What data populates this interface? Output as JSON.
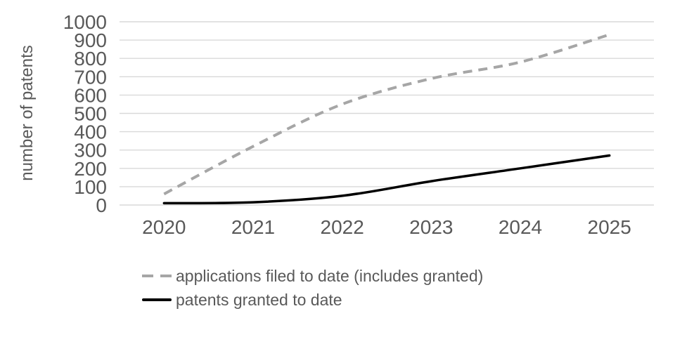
{
  "chart_data": {
    "type": "line",
    "categories": [
      "2020",
      "2021",
      "2022",
      "2023",
      "2024",
      "2025"
    ],
    "series": [
      {
        "name": "applications filed to date (includes granted)",
        "values": [
          60,
          320,
          550,
          690,
          780,
          930
        ],
        "color": "#A6A6A6",
        "style": "dashed"
      },
      {
        "name": "patents granted to date",
        "values": [
          10,
          15,
          50,
          130,
          200,
          270
        ],
        "color": "#000000",
        "style": "solid"
      }
    ],
    "xlabel": "",
    "ylabel": "number of patents",
    "ylim": [
      0,
      1000
    ],
    "y_ticks": [
      "0",
      "100",
      "200",
      "300",
      "400",
      "500",
      "600",
      "700",
      "800",
      "900",
      "1000"
    ],
    "grid": true,
    "legend_position": "bottom-left",
    "smoothed_lines": true
  },
  "colors": {
    "gridline": "#D9D9D9",
    "text": "#595959",
    "background": "#FFFFFF"
  }
}
